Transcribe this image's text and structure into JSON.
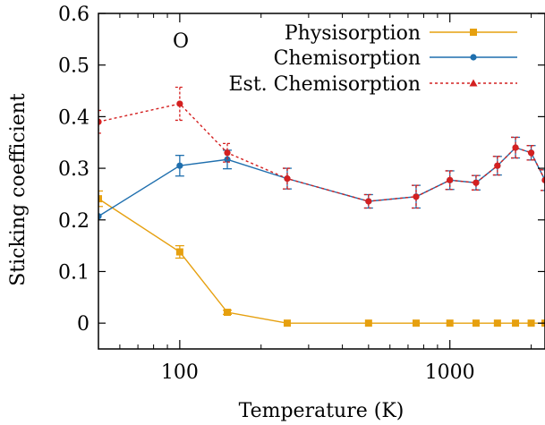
{
  "chart_data": {
    "type": "line",
    "title": "",
    "panel_label": "O",
    "xlabel": "Temperature (K)",
    "ylabel": "Sticking coefficient",
    "xscale": "log",
    "xlim": [
      50,
      2250
    ],
    "ylim": [
      -0.05,
      0.6
    ],
    "xticks": [
      100,
      1000
    ],
    "yticks": [
      0,
      0.1,
      0.2,
      0.3,
      0.4,
      0.5,
      0.6
    ],
    "ytick_labels": [
      "0",
      "0.1",
      "0.2",
      "0.3",
      "0.4",
      "0.5",
      "0.6"
    ],
    "grid": false,
    "legend_position": "top-right",
    "series": [
      {
        "name": "Physisorption",
        "color": "#e6a00f",
        "marker": "square",
        "line_style": "solid",
        "x": [
          50,
          100,
          150,
          250,
          500,
          750,
          1000,
          1250,
          1500,
          1750,
          2000,
          2250
        ],
        "y": [
          0.241,
          0.138,
          0.021,
          0.0,
          0.0,
          0.0,
          0.0,
          0.0,
          0.0,
          0.0,
          0.0,
          0.0
        ],
        "err": [
          0.015,
          0.012,
          0.004,
          0,
          0,
          0,
          0,
          0,
          0,
          0,
          0,
          0
        ]
      },
      {
        "name": "Chemisorption",
        "color": "#1f6fae",
        "marker": "circle",
        "line_style": "solid",
        "x": [
          50,
          100,
          150,
          250,
          500,
          750,
          1000,
          1250,
          1500,
          1750,
          2000,
          2250
        ],
        "y": [
          0.207,
          0.305,
          0.317,
          0.28,
          0.236,
          0.245,
          0.277,
          0.272,
          0.305,
          0.34,
          0.33,
          0.277
        ],
        "err": [
          0.0,
          0.02,
          0.018,
          0.02,
          0.013,
          0.022,
          0.018,
          0.014,
          0.018,
          0.02,
          0.014,
          0.02
        ]
      },
      {
        "name": "Est. Chemisorption",
        "color": "#d42020",
        "marker": "triangle",
        "line_style": "dotted",
        "x": [
          50,
          100,
          150,
          250,
          500,
          750,
          1000,
          1250,
          1500,
          1750,
          2000,
          2250
        ],
        "y": [
          0.39,
          0.425,
          0.33,
          0.28,
          0.236,
          0.245,
          0.277,
          0.272,
          0.305,
          0.34,
          0.33,
          0.277
        ],
        "err": [
          0.022,
          0.032,
          0.018,
          0.02,
          0.013,
          0.022,
          0.018,
          0.014,
          0.018,
          0.02,
          0.014,
          0.02
        ]
      }
    ]
  }
}
